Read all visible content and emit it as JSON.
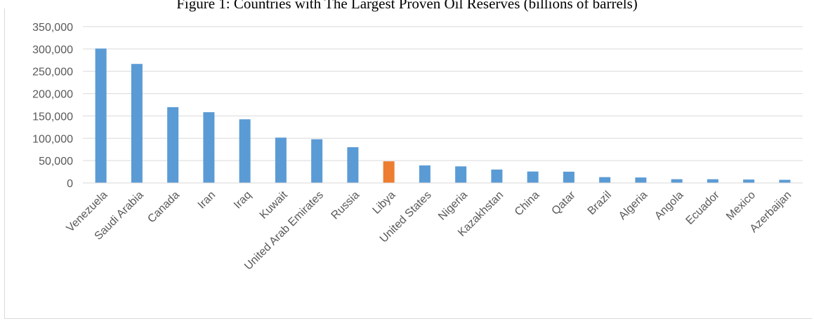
{
  "chart_data": {
    "type": "bar",
    "title": "Figure 1: Countries with The Largest Proven Oil Reserves  (billions of barrels)",
    "xlabel": "",
    "ylabel": "",
    "ylim": [
      0,
      350000
    ],
    "yticks": [
      "0",
      "50,000",
      "100,000",
      "150,000",
      "200,000",
      "250,000",
      "300,000",
      "350,000"
    ],
    "grid": true,
    "legend": "none",
    "categories": [
      "Venezuela",
      "Saudi Arabia",
      "Canada",
      "Iran",
      "Iraq",
      "Kuwait",
      "United Arab Emirates",
      "Russia",
      "Libya",
      "United States",
      "Nigeria",
      "Kazakhstan",
      "China",
      "Qatar",
      "Brazil",
      "Algeria",
      "Angola",
      "Ecuador",
      "Mexico",
      "Azerbaijan"
    ],
    "values": [
      300900,
      266500,
      169700,
      158400,
      142500,
      101500,
      97800,
      80000,
      48400,
      39200,
      37100,
      30000,
      25600,
      25200,
      13000,
      12200,
      8400,
      8300,
      7600,
      7000
    ],
    "colors": {
      "bar": "#5b9bd5",
      "highlight": "#ed7d31",
      "grid": "#d9d9d9",
      "axis_text": "#595959"
    },
    "highlight_category": "Libya"
  }
}
